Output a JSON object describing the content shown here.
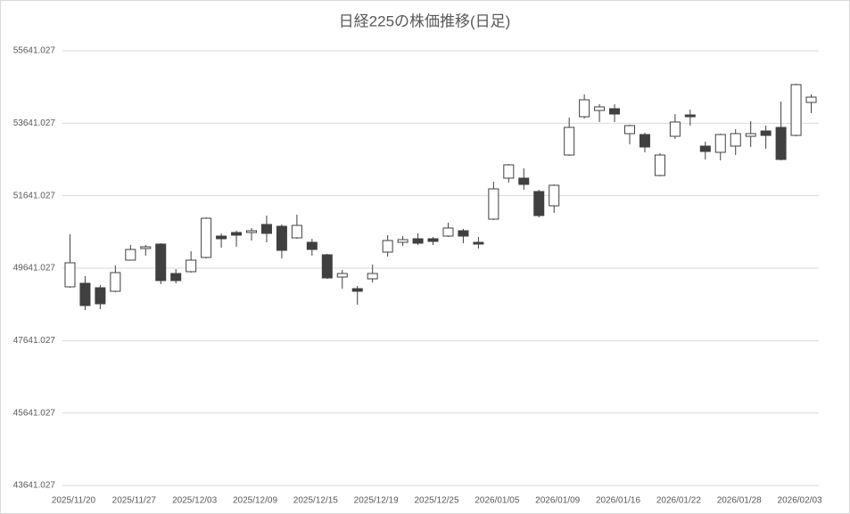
{
  "chart_data": {
    "type": "candlestick",
    "title": "日経225の株価推移(日足)",
    "categories": [
      "2025/11/20",
      null,
      null,
      null,
      "2025/11/27",
      null,
      null,
      null,
      "2025/12/03",
      null,
      null,
      null,
      "2025/12/09",
      null,
      null,
      null,
      "2025/12/15",
      null,
      null,
      null,
      "2025/12/19",
      null,
      null,
      null,
      "2025/12/25",
      null,
      null,
      null,
      "2026/01/05",
      null,
      null,
      null,
      "2026/01/09",
      null,
      null,
      null,
      "2026/01/16",
      null,
      null,
      null,
      "2026/01/22",
      null,
      null,
      null,
      "2026/01/28",
      null,
      null,
      null,
      "2026/02/03",
      null
    ],
    "open": [
      49125,
      49223,
      49100,
      49002,
      49862,
      50182,
      50305,
      49493,
      49543,
      49936,
      50526,
      50625,
      50625,
      50846,
      50797,
      50477,
      50354,
      50010,
      49395,
      49075,
      49346,
      50084,
      50354,
      50452,
      50452,
      50526,
      50674,
      50354,
      50993,
      52125,
      52125,
      51756,
      51362,
      52764,
      53821,
      53993,
      54043,
      53354,
      53329,
      52198,
      53280,
      53870,
      53010,
      52838,
      53010,
      53280,
      53428,
      53526,
      53305,
      54215
    ],
    "high": [
      50575,
      49420,
      49174,
      49715,
      50280,
      50280,
      50329,
      49616,
      50108,
      51043,
      50600,
      50674,
      50748,
      51092,
      50846,
      51116,
      50452,
      50034,
      49592,
      49149,
      49739,
      50551,
      50526,
      50600,
      50502,
      50895,
      50723,
      50502,
      52026,
      52518,
      52395,
      51805,
      51952,
      53797,
      54436,
      54166,
      54166,
      53600,
      53379,
      52813,
      53895,
      54018,
      53133,
      53354,
      53477,
      53698,
      53575,
      54239,
      54731,
      54436
    ],
    "low": [
      49100,
      48485,
      48510,
      48977,
      49862,
      49985,
      49198,
      49223,
      49518,
      49911,
      50207,
      50231,
      50403,
      50354,
      49911,
      50452,
      49985,
      49346,
      49075,
      48633,
      49248,
      49961,
      50256,
      50280,
      50280,
      50502,
      50329,
      50182,
      50969,
      52002,
      51805,
      51043,
      51166,
      52739,
      53772,
      53674,
      53674,
      53059,
      52838,
      52174,
      53207,
      53575,
      52641,
      52616,
      52764,
      52985,
      52936,
      52616,
      53280,
      53920
    ],
    "close": [
      49789,
      48608,
      48657,
      49518,
      50157,
      50231,
      49297,
      49297,
      49862,
      51018,
      50452,
      50551,
      50674,
      50600,
      50133,
      50821,
      50157,
      49370,
      49493,
      49002,
      49493,
      50403,
      50428,
      50329,
      50379,
      50748,
      50526,
      50305,
      51829,
      52493,
      51952,
      51092,
      51928,
      53526,
      54288,
      54092,
      53895,
      53575,
      52985,
      52764,
      53674,
      53821,
      52862,
      53329,
      53354,
      53354,
      53305,
      52641,
      54707,
      54362
    ],
    "ylim": [
      43641.027,
      55641.027
    ],
    "yticks": [
      43641.027,
      45641.027,
      47641.027,
      49641.027,
      51641.027,
      53641.027,
      55641.027
    ],
    "grid": true,
    "up_color": "#ffffff",
    "down_color": "#404040"
  }
}
